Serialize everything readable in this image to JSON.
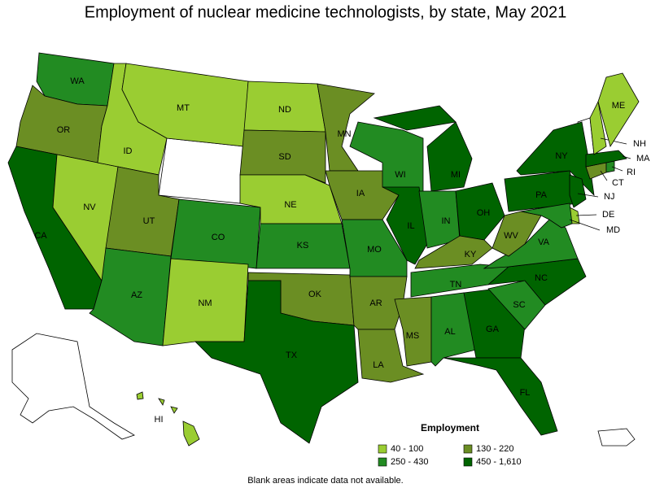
{
  "title": "Employment of nuclear medicine technologists, by state, May 2021",
  "footnote": "Blank areas indicate data not available.",
  "legend": {
    "title": "Employment",
    "items": [
      {
        "label": "40 - 100",
        "color": "#9acd32"
      },
      {
        "label": "130 - 220",
        "color": "#6b8e23"
      },
      {
        "label": "250 - 430",
        "color": "#228b22"
      },
      {
        "label": "450 - 1,610",
        "color": "#006400"
      }
    ]
  },
  "states": [
    {
      "label": "WA",
      "color": "#228b22"
    },
    {
      "label": "OR",
      "color": "#6b8e23"
    },
    {
      "label": "CA",
      "color": "#006400"
    },
    {
      "label": "NV",
      "color": "#9acd32"
    },
    {
      "label": "ID",
      "color": "#9acd32"
    },
    {
      "label": "MT",
      "color": "#9acd32"
    },
    {
      "label": "UT",
      "color": "#6b8e23"
    },
    {
      "label": "AZ",
      "color": "#228b22"
    },
    {
      "label": "CO",
      "color": "#228b22"
    },
    {
      "label": "NM",
      "color": "#9acd32"
    },
    {
      "label": "ND",
      "color": "#9acd32"
    },
    {
      "label": "SD",
      "color": "#6b8e23"
    },
    {
      "label": "NE",
      "color": "#9acd32"
    },
    {
      "label": "KS",
      "color": "#228b22"
    },
    {
      "label": "OK",
      "color": "#6b8e23"
    },
    {
      "label": "TX",
      "color": "#006400"
    },
    {
      "label": "MN",
      "color": "#6b8e23"
    },
    {
      "label": "IA",
      "color": "#6b8e23"
    },
    {
      "label": "MO",
      "color": "#228b22"
    },
    {
      "label": "AR",
      "color": "#6b8e23"
    },
    {
      "label": "LA",
      "color": "#6b8e23"
    },
    {
      "label": "WI",
      "color": "#228b22"
    },
    {
      "label": "IL",
      "color": "#006400"
    },
    {
      "label": "MI",
      "color": "#006400"
    },
    {
      "label": "IN",
      "color": "#228b22"
    },
    {
      "label": "OH",
      "color": "#006400"
    },
    {
      "label": "KY",
      "color": "#6b8e23"
    },
    {
      "label": "TN",
      "color": "#228b22"
    },
    {
      "label": "MS",
      "color": "#6b8e23"
    },
    {
      "label": "AL",
      "color": "#228b22"
    },
    {
      "label": "GA",
      "color": "#006400"
    },
    {
      "label": "FL",
      "color": "#006400"
    },
    {
      "label": "SC",
      "color": "#228b22"
    },
    {
      "label": "NC",
      "color": "#006400"
    },
    {
      "label": "VA",
      "color": "#228b22"
    },
    {
      "label": "WV",
      "color": "#6b8e23"
    },
    {
      "label": "PA",
      "color": "#006400"
    },
    {
      "label": "NY",
      "color": "#006400"
    },
    {
      "label": "NJ",
      "color": "#006400"
    },
    {
      "label": "DE",
      "color": "#9acd32"
    },
    {
      "label": "MD",
      "color": "#228b22"
    },
    {
      "label": "CT",
      "color": "#6b8e23"
    },
    {
      "label": "RI",
      "color": "#228b22"
    },
    {
      "label": "MA",
      "color": "#006400"
    },
    {
      "label": "NH",
      "color": "#9acd32"
    },
    {
      "label": "ME",
      "color": "#9acd32"
    },
    {
      "label": "HI",
      "color": "#9acd32"
    }
  ]
}
